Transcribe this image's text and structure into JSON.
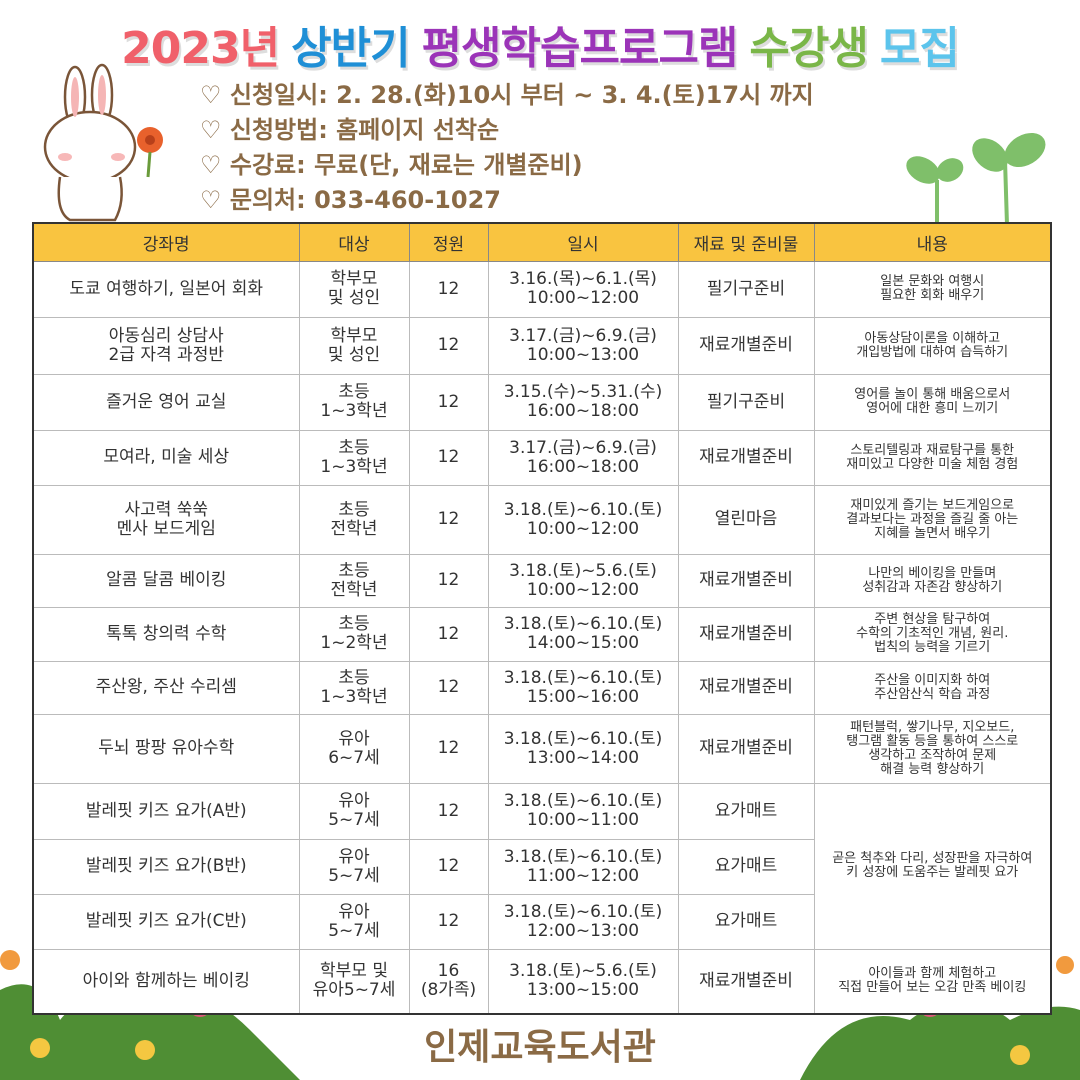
{
  "title": {
    "part1": "2023년",
    "part2": "상반기",
    "part3": "평생학습프로그램",
    "part4": "수강생",
    "part5": "모집",
    "colors": [
      "#f0606a",
      "#1f8fd6",
      "#9b34b8",
      "#7ab648",
      "#5cc4ec"
    ]
  },
  "info": [
    "♡ 신청일시: 2. 28.(화)10시 부터 ~ 3. 4.(토)17시 까지",
    "♡ 신청방법: 홈페이지 선착순",
    "♡ 수강료: 무료(단, 재료는 개별준비)",
    "♡ 문의처: 033-460-1027"
  ],
  "table": {
    "headers": [
      "강좌명",
      "대상",
      "정원",
      "일시",
      "재료 및 준비물",
      "내용"
    ],
    "rows": [
      [
        "도쿄 여행하기, 일본어 회화",
        "학부모\n및 성인",
        "12",
        "3.16.(목)~6.1.(목)\n10:00~12:00",
        "필기구준비",
        "일본 문화와 여행시\n필요한 회화 배우기"
      ],
      [
        "아동심리 상담사\n2급 자격 과정반",
        "학부모\n및 성인",
        "12",
        "3.17.(금)~6.9.(금)\n10:00~13:00",
        "재료개별준비",
        "아동상담이론을 이해하고\n개입방법에 대하여 습득하기"
      ],
      [
        "즐거운 영어 교실",
        "초등\n1~3학년",
        "12",
        "3.15.(수)~5.31.(수)\n16:00~18:00",
        "필기구준비",
        "영어를 놀이 통해 배움으로서\n영어에 대한 흥미 느끼기"
      ],
      [
        "모여라, 미술 세상",
        "초등\n1~3학년",
        "12",
        "3.17.(금)~6.9.(금)\n16:00~18:00",
        "재료개별준비",
        "스토리텔링과 재료탐구를 통한\n재미있고 다양한 미술 체험 경험"
      ],
      [
        "사고력 쑥쑥\n멘사 보드게임",
        "초등\n전학년",
        "12",
        "3.18.(토)~6.10.(토)\n10:00~12:00",
        "열린마음",
        "재미있게 즐기는 보드게임으로\n결과보다는 과정을 즐길 줄 아는\n지혜를  놀면서 배우기"
      ],
      [
        "알콤 달콤 베이킹",
        "초등\n전학년",
        "12",
        "3.18.(토)~5.6.(토)\n10:00~12:00",
        "재료개별준비",
        "나만의 베이킹을 만들며\n성취감과 자존감 향상하기"
      ],
      [
        "톡톡 창의력 수학",
        "초등\n1~2학년",
        "12",
        "3.18.(토)~6.10.(토)\n14:00~15:00",
        "재료개별준비",
        "주변 현상을 탐구하여\n수학의 기초적인 개념, 원리.\n법칙의 능력을 기르기"
      ],
      [
        "주산왕, 주산 수리셈",
        "초등\n1~3학년",
        "12",
        "3.18.(토)~6.10.(토)\n15:00~16:00",
        "재료개별준비",
        "주산을 이미지화 하여\n주산암산식 학습 과정"
      ],
      [
        "두뇌 팡팡 유아수학",
        "유아\n6~7세",
        "12",
        "3.18.(토)~6.10.(토)\n13:00~14:00",
        "재료개별준비",
        "패턴블럭, 쌓기나무, 지오보드,\n탱그램 활동 등을 통하여 스스로\n생각하고 조작하여 문제\n해결 능력 향상하기"
      ],
      [
        "발레핏 키즈 요가(A반)",
        "유아\n5~7세",
        "12",
        "3.18.(토)~6.10.(토)\n10:00~11:00",
        "요가매트",
        "곧은 척추와 다리, 성장판을 자극하여\n키 성장에 도움주는 발레핏 요가"
      ],
      [
        "발레핏 키즈 요가(B반)",
        "유아\n5~7세",
        "12",
        "3.18.(토)~6.10.(토)\n11:00~12:00",
        "요가매트",
        ""
      ],
      [
        "발레핏 키즈 요가(C반)",
        "유아\n5~7세",
        "12",
        "3.18.(토)~6.10.(토)\n12:00~13:00",
        "요가매트",
        ""
      ],
      [
        "아이와 함께하는 베이킹",
        "학부모 및\n유아5~7세",
        "16\n(8가족)",
        "3.18.(토)~5.6.(토)\n13:00~15:00",
        "재료개별준비",
        "아이들과 함께 체험하고\n직접 만들어 보는 오감 만족 베이킹"
      ]
    ]
  },
  "footer": "인제교육도서관"
}
